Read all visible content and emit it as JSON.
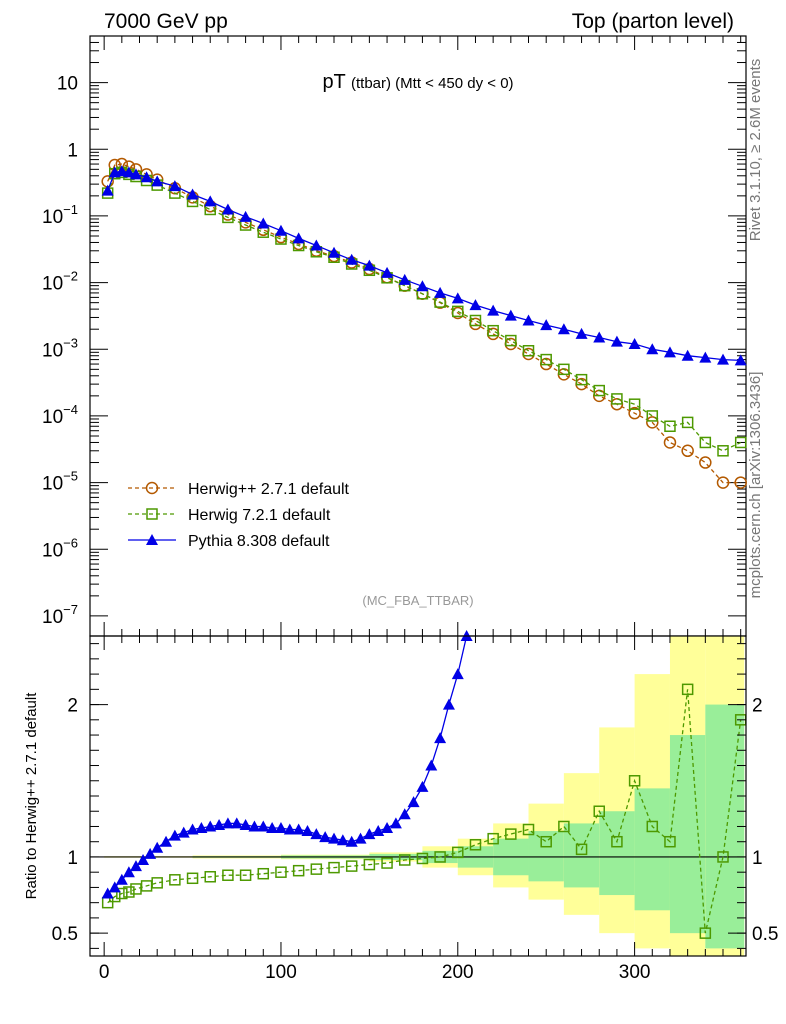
{
  "header": {
    "left": "7000 GeV pp",
    "right": "Top (parton level)"
  },
  "side": {
    "rivet": "Rivet 3.1.10, ≥ 2.6M events",
    "mcplots": "mcplots.cern.ch [arXiv:1306.3436]"
  },
  "top_panel": {
    "title_main": "pT",
    "title_sub": "(ttbar) (Mtt < 450 dy < 0)",
    "watermark": "(MC_FBA_TTBAR)",
    "y_ticks": [
      {
        "base": "10",
        "exp": "",
        "value": 10
      },
      {
        "base": "1",
        "exp": "",
        "value": 1
      },
      {
        "base": "10",
        "exp": "−1",
        "value": 0.1
      },
      {
        "base": "10",
        "exp": "−2",
        "value": 0.01
      },
      {
        "base": "10",
        "exp": "−3",
        "value": 0.001
      },
      {
        "base": "10",
        "exp": "−4",
        "value": 0.0001
      },
      {
        "base": "10",
        "exp": "−5",
        "value": 1e-05
      },
      {
        "base": "10",
        "exp": "−6",
        "value": 1e-06
      },
      {
        "base": "10",
        "exp": "−7",
        "value": 1e-07
      }
    ]
  },
  "ratio_panel": {
    "ylabel": "Ratio to Herwig++ 2.7.1 default",
    "y_ticks": [
      {
        "label": "0.5",
        "value": 0.5
      },
      {
        "label": "1",
        "value": 1
      },
      {
        "label": "2",
        "value": 2
      }
    ]
  },
  "x_ticks": [
    {
      "label": "0",
      "value": 0
    },
    {
      "label": "100",
      "value": 100
    },
    {
      "label": "200",
      "value": 200
    },
    {
      "label": "300",
      "value": 300
    }
  ],
  "legend": [
    {
      "label": "Herwig++ 2.7.1 default",
      "color": "#b35900",
      "marker": "open-circle",
      "style": "dashed"
    },
    {
      "label": "Herwig 7.2.1 default",
      "color": "#4d9900",
      "marker": "open-square",
      "style": "dashed"
    },
    {
      "label": "Pythia 8.308 default",
      "color": "#0000e6",
      "marker": "filled-triangle",
      "style": "solid"
    }
  ],
  "chart_data": [
    {
      "type": "scatter",
      "yscale": "log",
      "xlim": [
        -8,
        363
      ],
      "ylim": [
        5e-08,
        50
      ],
      "series": [
        {
          "name": "Herwig++ 2.7.1 default",
          "x": [
            2,
            6,
            10,
            14,
            18,
            24,
            30,
            40,
            50,
            60,
            70,
            80,
            90,
            100,
            110,
            120,
            130,
            140,
            150,
            160,
            170,
            180,
            190,
            200,
            210,
            220,
            230,
            240,
            250,
            260,
            270,
            280,
            290,
            300,
            310,
            320,
            330,
            340,
            350,
            360
          ],
          "y": [
            0.33,
            0.58,
            0.6,
            0.55,
            0.5,
            0.42,
            0.35,
            0.26,
            0.19,
            0.14,
            0.105,
            0.08,
            0.062,
            0.048,
            0.038,
            0.03,
            0.025,
            0.02,
            0.016,
            0.012,
            0.009,
            0.0068,
            0.005,
            0.0035,
            0.0024,
            0.0017,
            0.0012,
            0.00085,
            0.0006,
            0.00042,
            0.0003,
            0.0002,
            0.00015,
            0.00011,
            8e-05,
            4e-05,
            3e-05,
            2e-05,
            1e-05,
            1e-05
          ]
        },
        {
          "name": "Herwig 7.2.1 default",
          "x": [
            2,
            6,
            10,
            14,
            18,
            24,
            30,
            40,
            50,
            60,
            70,
            80,
            90,
            100,
            110,
            120,
            130,
            140,
            150,
            160,
            170,
            180,
            190,
            200,
            210,
            220,
            230,
            240,
            250,
            260,
            270,
            280,
            290,
            300,
            310,
            320,
            330,
            340,
            350,
            360
          ],
          "y": [
            0.22,
            0.43,
            0.45,
            0.42,
            0.39,
            0.34,
            0.29,
            0.22,
            0.165,
            0.125,
            0.095,
            0.073,
            0.057,
            0.045,
            0.036,
            0.029,
            0.024,
            0.019,
            0.0153,
            0.0118,
            0.009,
            0.0068,
            0.0051,
            0.0037,
            0.0027,
            0.0019,
            0.00135,
            0.00095,
            0.0007,
            0.0005,
            0.00035,
            0.00024,
            0.00018,
            0.00015,
            0.0001,
            7e-05,
            8e-05,
            4e-05,
            3e-05,
            4e-05
          ]
        },
        {
          "name": "Pythia 8.308 default",
          "x": [
            2,
            6,
            10,
            14,
            18,
            24,
            30,
            40,
            50,
            60,
            70,
            80,
            90,
            100,
            110,
            120,
            130,
            140,
            150,
            160,
            170,
            180,
            190,
            200,
            210,
            220,
            230,
            240,
            250,
            260,
            270,
            280,
            290,
            300,
            310,
            320,
            330,
            340,
            350,
            360
          ],
          "y": [
            0.24,
            0.45,
            0.47,
            0.45,
            0.42,
            0.38,
            0.33,
            0.28,
            0.21,
            0.165,
            0.125,
            0.097,
            0.077,
            0.06,
            0.046,
            0.036,
            0.028,
            0.022,
            0.018,
            0.014,
            0.011,
            0.0088,
            0.007,
            0.0058,
            0.0046,
            0.0038,
            0.0032,
            0.0027,
            0.0023,
            0.002,
            0.0017,
            0.0015,
            0.0013,
            0.0012,
            0.001,
            0.0009,
            0.0008,
            0.00075,
            0.0007,
            0.00068
          ]
        }
      ]
    },
    {
      "type": "scatter",
      "ylim": [
        0.35,
        2.45
      ],
      "xlim": [
        -8,
        363
      ],
      "reference": 1,
      "series": [
        {
          "name": "Herwig 7.2.1 default",
          "x": [
            2,
            6,
            10,
            14,
            18,
            24,
            30,
            40,
            50,
            60,
            70,
            80,
            90,
            100,
            110,
            120,
            130,
            140,
            150,
            160,
            170,
            180,
            190,
            200,
            210,
            220,
            230,
            240,
            250,
            260,
            270,
            280,
            290,
            300,
            310,
            320,
            330,
            340,
            350,
            360
          ],
          "y": [
            0.7,
            0.74,
            0.76,
            0.77,
            0.79,
            0.81,
            0.83,
            0.85,
            0.86,
            0.87,
            0.88,
            0.88,
            0.89,
            0.9,
            0.91,
            0.92,
            0.93,
            0.94,
            0.95,
            0.96,
            0.98,
            0.99,
            1.0,
            1.03,
            1.08,
            1.12,
            1.15,
            1.18,
            1.1,
            1.2,
            1.05,
            1.3,
            1.1,
            1.5,
            1.2,
            1.1,
            2.1,
            0.5,
            1.0,
            1.9
          ]
        },
        {
          "name": "Pythia 8.308 default",
          "x": [
            2,
            6,
            10,
            14,
            18,
            22,
            26,
            30,
            35,
            40,
            45,
            50,
            55,
            60,
            65,
            70,
            75,
            80,
            85,
            90,
            95,
            100,
            105,
            110,
            115,
            120,
            125,
            130,
            135,
            140,
            145,
            150,
            155,
            160,
            165,
            170,
            175,
            180,
            185,
            190,
            195,
            200,
            205
          ],
          "y": [
            0.76,
            0.8,
            0.85,
            0.9,
            0.94,
            0.98,
            1.02,
            1.06,
            1.1,
            1.14,
            1.16,
            1.18,
            1.19,
            1.2,
            1.21,
            1.22,
            1.22,
            1.21,
            1.2,
            1.2,
            1.19,
            1.19,
            1.18,
            1.18,
            1.17,
            1.15,
            1.13,
            1.12,
            1.11,
            1.1,
            1.12,
            1.15,
            1.17,
            1.19,
            1.22,
            1.28,
            1.36,
            1.46,
            1.6,
            1.78,
            2.0,
            2.2,
            2.45
          ]
        }
      ],
      "bands": {
        "x_edges": [
          0,
          50,
          100,
          150,
          180,
          200,
          220,
          240,
          260,
          280,
          300,
          320,
          340,
          362
        ],
        "yellow_lo": [
          0.995,
          0.99,
          0.985,
          0.97,
          0.93,
          0.88,
          0.8,
          0.72,
          0.62,
          0.5,
          0.4,
          0.35,
          0.35
        ],
        "yellow_hi": [
          1.005,
          1.01,
          1.015,
          1.03,
          1.07,
          1.12,
          1.22,
          1.35,
          1.55,
          1.85,
          2.2,
          2.45,
          2.45
        ],
        "green_lo": [
          0.998,
          0.995,
          0.99,
          0.98,
          0.96,
          0.93,
          0.88,
          0.84,
          0.8,
          0.75,
          0.65,
          0.5,
          0.4
        ],
        "green_hi": [
          1.002,
          1.005,
          1.01,
          1.02,
          1.04,
          1.07,
          1.12,
          1.17,
          1.22,
          1.3,
          1.45,
          1.8,
          2.0
        ]
      }
    }
  ]
}
